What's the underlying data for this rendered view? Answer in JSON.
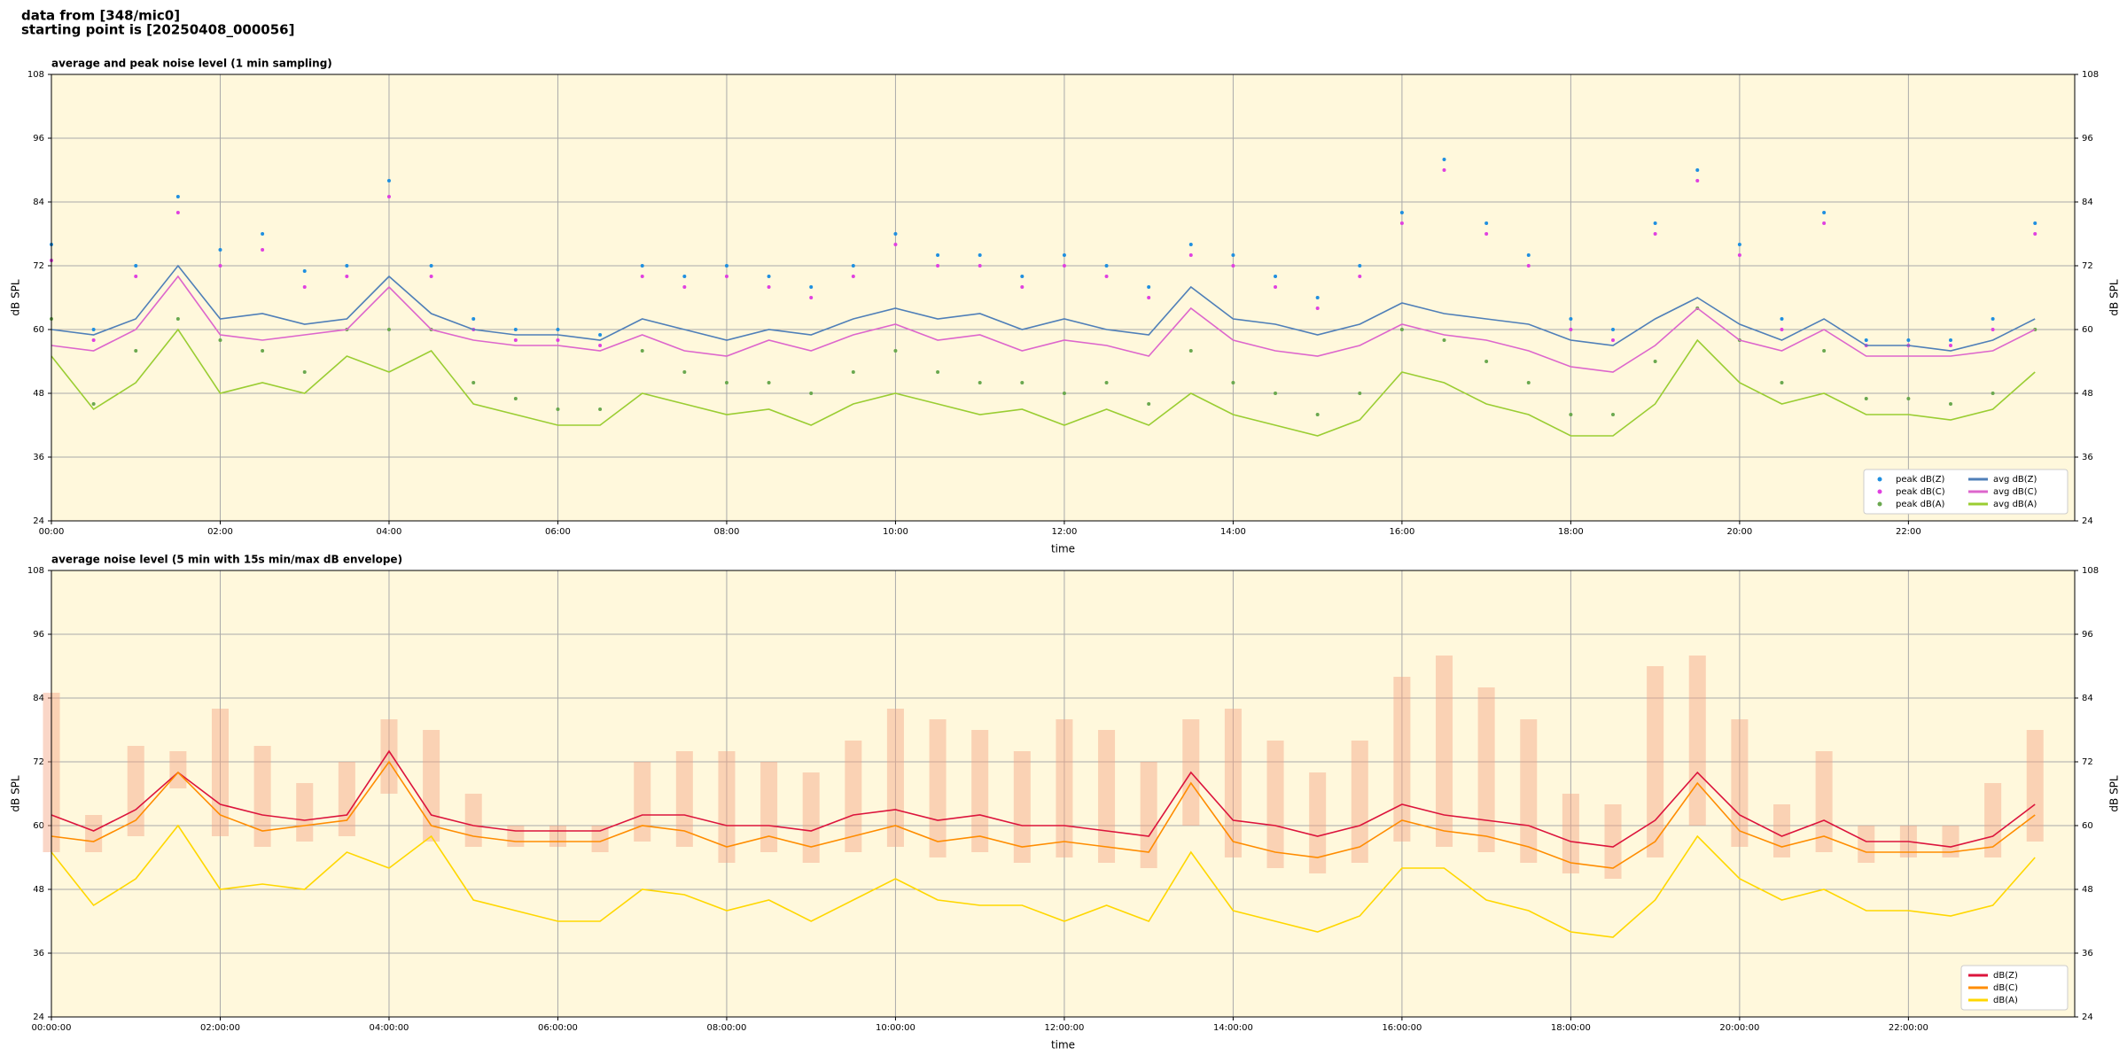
{
  "page_title": [
    "data from [348/mic0]",
    "starting point is [20250408_000056]"
  ],
  "chart_data": [
    {
      "type": "line",
      "title": "average and peak noise level (1 min sampling)",
      "xlabel": "time",
      "ylabel": "dB SPL",
      "xlim": [
        0,
        23.97
      ],
      "ylim": [
        24,
        108
      ],
      "xticks": [
        {
          "value": 0,
          "label": "00:00"
        },
        {
          "value": 2,
          "label": "02:00"
        },
        {
          "value": 4,
          "label": "04:00"
        },
        {
          "value": 6,
          "label": "06:00"
        },
        {
          "value": 8,
          "label": "08:00"
        },
        {
          "value": 10,
          "label": "10:00"
        },
        {
          "value": 12,
          "label": "12:00"
        },
        {
          "value": 14,
          "label": "14:00"
        },
        {
          "value": 16,
          "label": "16:00"
        },
        {
          "value": 18,
          "label": "18:00"
        },
        {
          "value": 20,
          "label": "20:00"
        },
        {
          "value": 22,
          "label": "22:00"
        }
      ],
      "yticks": [
        24,
        36,
        48,
        60,
        72,
        84,
        96,
        108
      ],
      "grid": true,
      "legend": "lower right",
      "legend_columns": 2,
      "background": "#fff8dc",
      "x": [
        0,
        0.5,
        1,
        1.5,
        2,
        2.5,
        3,
        3.5,
        4,
        4.5,
        5,
        5.5,
        6,
        6.5,
        7,
        7.5,
        8,
        8.5,
        9,
        9.5,
        10,
        10.5,
        11,
        11.5,
        12,
        12.5,
        13,
        13.5,
        14,
        14.5,
        15,
        15.5,
        16,
        16.5,
        17,
        17.5,
        18,
        18.5,
        19,
        19.5,
        20,
        20.5,
        21,
        21.5,
        22,
        22.5,
        23,
        23.5
      ],
      "series": [
        {
          "name": "peak dB(Z)",
          "marker": "dot",
          "color": "#1f8fe0",
          "values": [
            76,
            60,
            72,
            85,
            75,
            78,
            71,
            72,
            88,
            72,
            62,
            60,
            60,
            59,
            72,
            70,
            72,
            70,
            68,
            72,
            78,
            74,
            74,
            70,
            74,
            72,
            68,
            76,
            74,
            70,
            66,
            72,
            82,
            92,
            80,
            74,
            62,
            60,
            80,
            90,
            76,
            62,
            82,
            58,
            58,
            58,
            62,
            80
          ]
        },
        {
          "name": "peak dB(C)",
          "marker": "dot",
          "color": "#e040e0",
          "values": [
            73,
            58,
            70,
            82,
            72,
            75,
            68,
            70,
            85,
            70,
            60,
            58,
            58,
            57,
            70,
            68,
            70,
            68,
            66,
            70,
            76,
            72,
            72,
            68,
            72,
            70,
            66,
            74,
            72,
            68,
            64,
            70,
            80,
            90,
            78,
            72,
            60,
            58,
            78,
            88,
            74,
            60,
            80,
            57,
            57,
            57,
            60,
            78
          ]
        },
        {
          "name": "peak dB(A)",
          "marker": "dot",
          "color": "#6aa84f",
          "values": [
            62,
            46,
            56,
            62,
            58,
            56,
            52,
            60,
            60,
            60,
            50,
            47,
            45,
            45,
            56,
            52,
            50,
            50,
            48,
            52,
            56,
            52,
            50,
            50,
            48,
            50,
            46,
            56,
            50,
            48,
            44,
            48,
            60,
            58,
            54,
            50,
            44,
            44,
            54,
            64,
            58,
            50,
            56,
            47,
            47,
            46,
            48,
            60
          ]
        },
        {
          "name": "avg dB(Z)",
          "marker": "line",
          "color": "#4f7fb8",
          "values": [
            60,
            59,
            62,
            72,
            62,
            63,
            61,
            62,
            70,
            63,
            60,
            59,
            59,
            58,
            62,
            60,
            58,
            60,
            59,
            62,
            64,
            62,
            63,
            60,
            62,
            60,
            59,
            68,
            62,
            61,
            59,
            61,
            65,
            63,
            62,
            61,
            58,
            57,
            62,
            66,
            61,
            58,
            62,
            57,
            57,
            56,
            58,
            62
          ]
        },
        {
          "name": "avg dB(C)",
          "marker": "line",
          "color": "#dd66cc",
          "values": [
            57,
            56,
            60,
            70,
            59,
            58,
            59,
            60,
            68,
            60,
            58,
            57,
            57,
            56,
            59,
            56,
            55,
            58,
            56,
            59,
            61,
            58,
            59,
            56,
            58,
            57,
            55,
            64,
            58,
            56,
            55,
            57,
            61,
            59,
            58,
            56,
            53,
            52,
            57,
            64,
            58,
            56,
            60,
            55,
            55,
            55,
            56,
            60
          ]
        },
        {
          "name": "avg dB(A)",
          "marker": "line",
          "color": "#9acd32",
          "values": [
            55,
            45,
            50,
            60,
            48,
            50,
            48,
            55,
            52,
            56,
            46,
            44,
            42,
            42,
            48,
            46,
            44,
            45,
            42,
            46,
            48,
            46,
            44,
            45,
            42,
            45,
            42,
            48,
            44,
            42,
            40,
            43,
            52,
            50,
            46,
            44,
            40,
            40,
            46,
            58,
            50,
            46,
            48,
            44,
            44,
            43,
            45,
            52
          ]
        }
      ]
    },
    {
      "type": "line",
      "title": "average noise level (5 min with 15s min/max dB envelope)",
      "xlabel": "time",
      "ylabel": "dB SPL",
      "xlim": [
        0,
        23.97
      ],
      "ylim": [
        24,
        108
      ],
      "xticks": [
        {
          "value": 0,
          "label": "00:00:00"
        },
        {
          "value": 2,
          "label": "02:00:00"
        },
        {
          "value": 4,
          "label": "04:00:00"
        },
        {
          "value": 6,
          "label": "06:00:00"
        },
        {
          "value": 8,
          "label": "08:00:00"
        },
        {
          "value": 10,
          "label": "10:00:00"
        },
        {
          "value": 12,
          "label": "12:00:00"
        },
        {
          "value": 14,
          "label": "14:00:00"
        },
        {
          "value": 16,
          "label": "16:00:00"
        },
        {
          "value": 18,
          "label": "18:00:00"
        },
        {
          "value": 20,
          "label": "20:00:00"
        },
        {
          "value": 22,
          "label": "22:00:00"
        }
      ],
      "yticks": [
        24,
        36,
        48,
        60,
        72,
        84,
        96,
        108
      ],
      "grid": true,
      "legend": "lower right",
      "legend_columns": 1,
      "background": "#fff8dc",
      "x": [
        0,
        0.5,
        1,
        1.5,
        2,
        2.5,
        3,
        3.5,
        4,
        4.5,
        5,
        5.5,
        6,
        6.5,
        7,
        7.5,
        8,
        8.5,
        9,
        9.5,
        10,
        10.5,
        11,
        11.5,
        12,
        12.5,
        13,
        13.5,
        14,
        14.5,
        15,
        15.5,
        16,
        16.5,
        17,
        17.5,
        18,
        18.5,
        19,
        19.5,
        20,
        20.5,
        21,
        21.5,
        22,
        22.5,
        23,
        23.5
      ],
      "envelope": {
        "color": "#f4a582",
        "lower": [
          55,
          55,
          58,
          67,
          58,
          56,
          57,
          58,
          66,
          57,
          56,
          56,
          56,
          55,
          57,
          56,
          53,
          55,
          53,
          55,
          56,
          54,
          55,
          53,
          54,
          53,
          52,
          60,
          54,
          52,
          51,
          53,
          57,
          56,
          55,
          53,
          51,
          50,
          54,
          60,
          56,
          54,
          55,
          53,
          54,
          54,
          54,
          57
        ],
        "upper": [
          85,
          62,
          75,
          74,
          82,
          75,
          68,
          72,
          80,
          78,
          66,
          60,
          60,
          60,
          72,
          74,
          74,
          72,
          70,
          76,
          82,
          80,
          78,
          74,
          80,
          78,
          72,
          80,
          82,
          76,
          70,
          76,
          88,
          92,
          86,
          80,
          66,
          64,
          90,
          92,
          80,
          64,
          74,
          60,
          60,
          60,
          68,
          78
        ]
      },
      "series": [
        {
          "name": "dB(Z)",
          "marker": "line",
          "color": "#dc143c",
          "values": [
            62,
            59,
            63,
            70,
            64,
            62,
            61,
            62,
            74,
            62,
            60,
            59,
            59,
            59,
            62,
            62,
            60,
            60,
            59,
            62,
            63,
            61,
            62,
            60,
            60,
            59,
            58,
            70,
            61,
            60,
            58,
            60,
            64,
            62,
            61,
            60,
            57,
            56,
            61,
            70,
            62,
            58,
            61,
            57,
            57,
            56,
            58,
            64
          ]
        },
        {
          "name": "dB(C)",
          "marker": "line",
          "color": "#ff8c00",
          "values": [
            58,
            57,
            61,
            70,
            62,
            59,
            60,
            61,
            72,
            60,
            58,
            57,
            57,
            57,
            60,
            59,
            56,
            58,
            56,
            58,
            60,
            57,
            58,
            56,
            57,
            56,
            55,
            68,
            57,
            55,
            54,
            56,
            61,
            59,
            58,
            56,
            53,
            52,
            57,
            68,
            59,
            56,
            58,
            55,
            55,
            55,
            56,
            62
          ]
        },
        {
          "name": "dB(A)",
          "marker": "line",
          "color": "#ffd700",
          "values": [
            55,
            45,
            50,
            60,
            48,
            49,
            48,
            55,
            52,
            58,
            46,
            44,
            42,
            42,
            48,
            47,
            44,
            46,
            42,
            46,
            50,
            46,
            45,
            45,
            42,
            45,
            42,
            55,
            44,
            42,
            40,
            43,
            52,
            52,
            46,
            44,
            40,
            39,
            46,
            58,
            50,
            46,
            48,
            44,
            44,
            43,
            45,
            54
          ]
        }
      ]
    }
  ]
}
